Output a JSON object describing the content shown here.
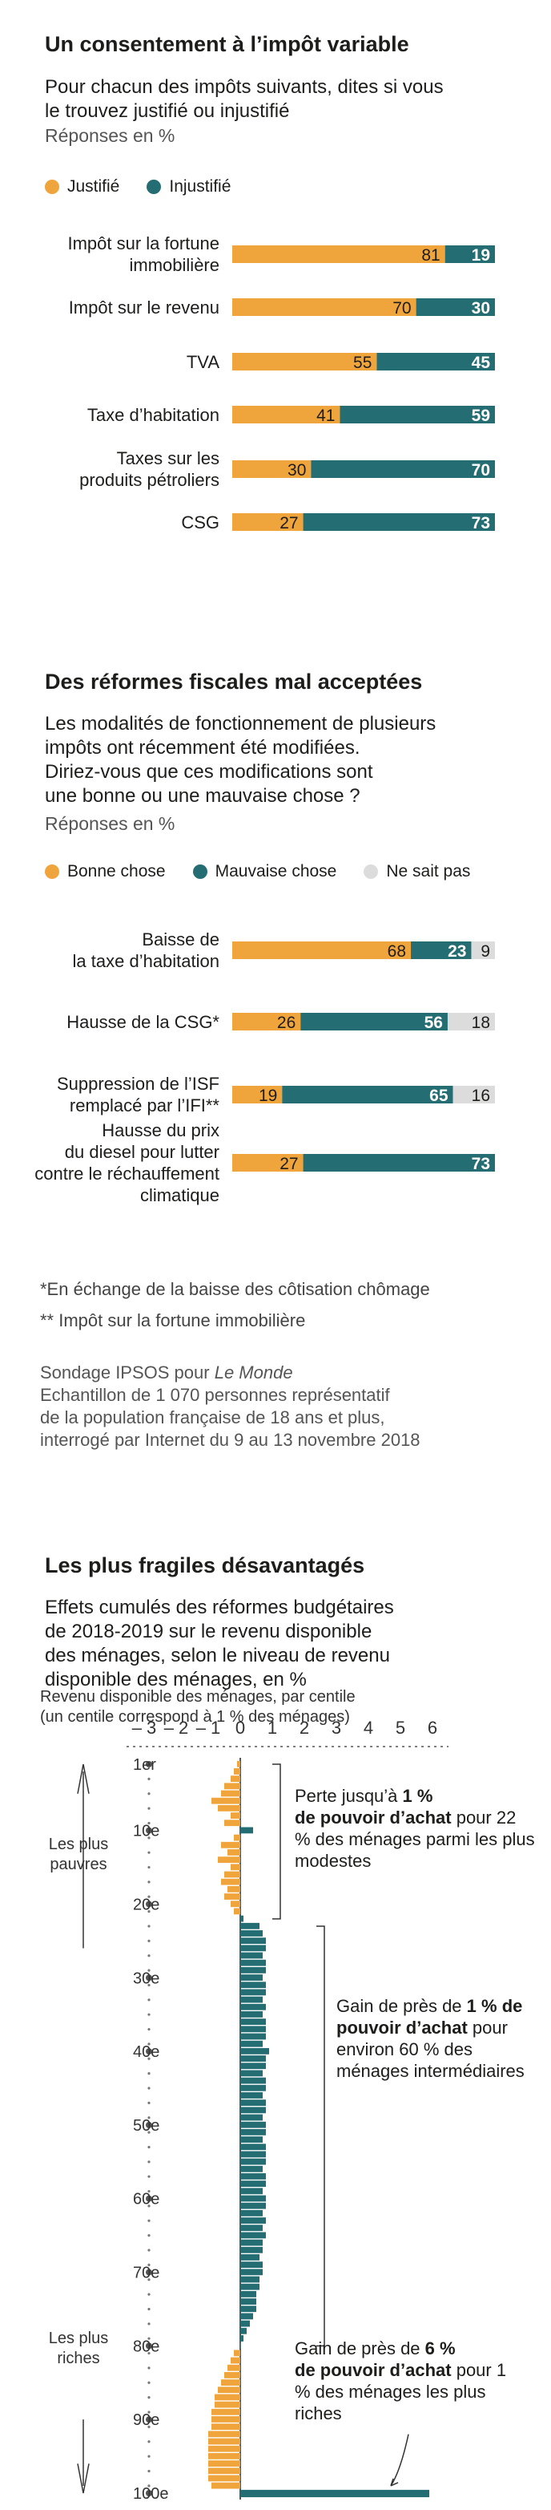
{
  "colors": {
    "orange": "#f0a43c",
    "teal": "#246d73",
    "grey": "#dcdcdc",
    "axis": "#555555"
  },
  "section1": {
    "title": "Un consentement à l’impôt variable",
    "subtitle": "Pour chacun des impôts suivants, dites si vous\nle trouvez justifié ou injustifié",
    "unit": "Réponses en %",
    "legend": [
      "Justifié",
      "Injustifié"
    ]
  },
  "section2": {
    "title": "Des réformes fiscales mal acceptées",
    "subtitle": "Les modalités de fonctionnement de plusieurs\nimpôts ont récemment été modifiées.\nDiriez-vous que ces modifications sont\nune bonne ou une mauvaise chose ?",
    "unit": "Réponses en %",
    "legend": [
      "Bonne chose",
      "Mauvaise chose",
      "Ne sait pas"
    ],
    "note1": "*En échange de la baisse des côtisation chômage",
    "note2": "** Impôt sur la fortune immobilière",
    "source_prefix": "Sondage IPSOS pour ",
    "source_paper": "Le Monde",
    "source_rest": "Echantillon de 1 070 personnes représentatif\nde la population française de 18 ans et plus,\ninterrogé par Internet du 9 au 13 novembre 2018"
  },
  "section3": {
    "title": "Les plus fragiles désavantagés",
    "subtitle": "Effets cumulés des réformes budgétaires\nde 2018-2019 sur le revenu disponible\ndes ménages, selon le niveau de revenu\ndisponible des ménages, en %",
    "axis_caption": "Revenu disponible des ménages, par centile\n(un centile correspond à 1 % des ménages)",
    "poorest_label": "Les plus\npauvres",
    "richest_label": "Les plus\nriches",
    "anno1_pre": "Perte jusqu’à ",
    "anno1_bold": "1 %\nde pouvoir d’achat",
    "anno1_post": " pour 22 % des ménages parmi les plus modestes",
    "anno2_pre": "Gain de près de ",
    "anno2_bold": "1 % de pouvoir d’achat",
    "anno2_post": " pour environ 60 % des ménages intermédiaires",
    "anno3_pre": "Gain de près de ",
    "anno3_bold": "6 %\nde pouvoir d’achat",
    "anno3_post": " pour 1 % des ménages les plus riches"
  },
  "chart_data": [
    {
      "type": "bar",
      "orientation": "horizontal",
      "stacked": true,
      "categories": [
        "Impôt sur la fortune immobilière",
        "Impôt sur le revenu",
        "TVA",
        "Taxe d’habitation",
        "Taxes sur les produits pétroliers",
        "CSG"
      ],
      "category_labels": [
        "Impôt sur la fortune\nimmobilière",
        "Impôt sur le revenu",
        "TVA",
        "Taxe d’habitation",
        "Taxes sur les\nproduits pétroliers",
        "CSG"
      ],
      "series": [
        {
          "name": "Justifié",
          "values": [
            81,
            70,
            55,
            41,
            30,
            27
          ]
        },
        {
          "name": "Injustifié",
          "values": [
            19,
            30,
            45,
            59,
            70,
            73
          ]
        }
      ],
      "xlim": [
        0,
        100
      ]
    },
    {
      "type": "bar",
      "orientation": "horizontal",
      "stacked": true,
      "categories": [
        "Baisse de la taxe d’habitation",
        "Hausse de la CSG*",
        "Suppression de l’ISF remplacé par l’IFI**",
        "Hausse du prix du diesel pour lutter contre le réchauffement climatique"
      ],
      "category_labels": [
        "Baisse de\nla taxe d’habitation",
        "Hausse de la CSG*",
        "Suppression de l’ISF\nremplacé par l’IFI**",
        "Hausse du prix\ndu diesel pour lutter\ncontre le réchauffement\nclimatique"
      ],
      "series": [
        {
          "name": "Bonne chose",
          "values": [
            68,
            26,
            19,
            27
          ]
        },
        {
          "name": "Mauvaise chose",
          "values": [
            23,
            56,
            65,
            73
          ]
        },
        {
          "name": "Ne sait pas",
          "values": [
            9,
            18,
            16,
            0
          ]
        }
      ],
      "xlim": [
        0,
        100
      ]
    },
    {
      "type": "bar",
      "orientation": "horizontal",
      "x_ticks": [
        "– 3",
        "– 2",
        "– 1",
        "0",
        "1",
        "2",
        "3",
        "4",
        "5",
        "6"
      ],
      "x_tick_values": [
        -3,
        -2,
        -1,
        0,
        1,
        2,
        3,
        4,
        5,
        6
      ],
      "xlim": [
        -3.5,
        6.5
      ],
      "y_ticks": [
        "1er",
        "10e",
        "20e",
        "30e",
        "40e",
        "50e",
        "60e",
        "70e",
        "80e",
        "90e",
        "100e"
      ],
      "y_tick_values": [
        1,
        10,
        20,
        30,
        40,
        50,
        60,
        70,
        80,
        90,
        100
      ],
      "ylabel": "Revenu disponible des ménages, par centile (un centile correspond à 1 % des ménages)",
      "centiles": [
        1,
        2,
        3,
        4,
        5,
        6,
        7,
        8,
        9,
        10,
        11,
        12,
        13,
        14,
        15,
        16,
        17,
        18,
        19,
        20,
        21,
        22,
        23,
        24,
        25,
        26,
        27,
        28,
        29,
        30,
        31,
        32,
        33,
        34,
        35,
        36,
        37,
        38,
        39,
        40,
        41,
        42,
        43,
        44,
        45,
        46,
        47,
        48,
        49,
        50,
        51,
        52,
        53,
        54,
        55,
        56,
        57,
        58,
        59,
        60,
        61,
        62,
        63,
        64,
        65,
        66,
        67,
        68,
        69,
        70,
        71,
        72,
        73,
        74,
        75,
        76,
        77,
        78,
        79,
        80,
        81,
        82,
        83,
        84,
        85,
        86,
        87,
        88,
        89,
        90,
        91,
        92,
        93,
        94,
        95,
        96,
        97,
        98,
        99,
        100
      ],
      "values": [
        -0.1,
        -0.2,
        -0.3,
        -0.5,
        -0.6,
        -0.9,
        -0.7,
        -0.3,
        -0.5,
        0.4,
        -0.2,
        -0.6,
        -0.4,
        -0.7,
        -0.3,
        -0.5,
        -0.6,
        -0.4,
        -0.5,
        -0.3,
        -0.2,
        0.1,
        0.6,
        0.7,
        0.8,
        0.8,
        0.7,
        0.8,
        0.8,
        0.7,
        0.8,
        0.8,
        0.7,
        0.8,
        0.7,
        0.8,
        0.8,
        0.8,
        0.7,
        0.9,
        0.8,
        0.8,
        0.7,
        0.8,
        0.8,
        0.7,
        0.8,
        0.8,
        0.7,
        0.8,
        0.8,
        0.7,
        0.8,
        0.8,
        0.8,
        0.7,
        0.8,
        0.8,
        0.7,
        0.8,
        0.8,
        0.7,
        0.8,
        0.7,
        0.8,
        0.7,
        0.7,
        0.6,
        0.7,
        0.7,
        0.6,
        0.6,
        0.5,
        0.5,
        0.5,
        0.4,
        0.3,
        0.2,
        0.1,
        0.0,
        -0.2,
        -0.3,
        -0.4,
        -0.5,
        -0.6,
        -0.7,
        -0.8,
        -0.8,
        -0.9,
        -0.9,
        -0.9,
        -1.0,
        -1.0,
        -1.0,
        -1.0,
        -1.0,
        -1.0,
        -1.0,
        -0.9,
        5.9
      ]
    }
  ]
}
